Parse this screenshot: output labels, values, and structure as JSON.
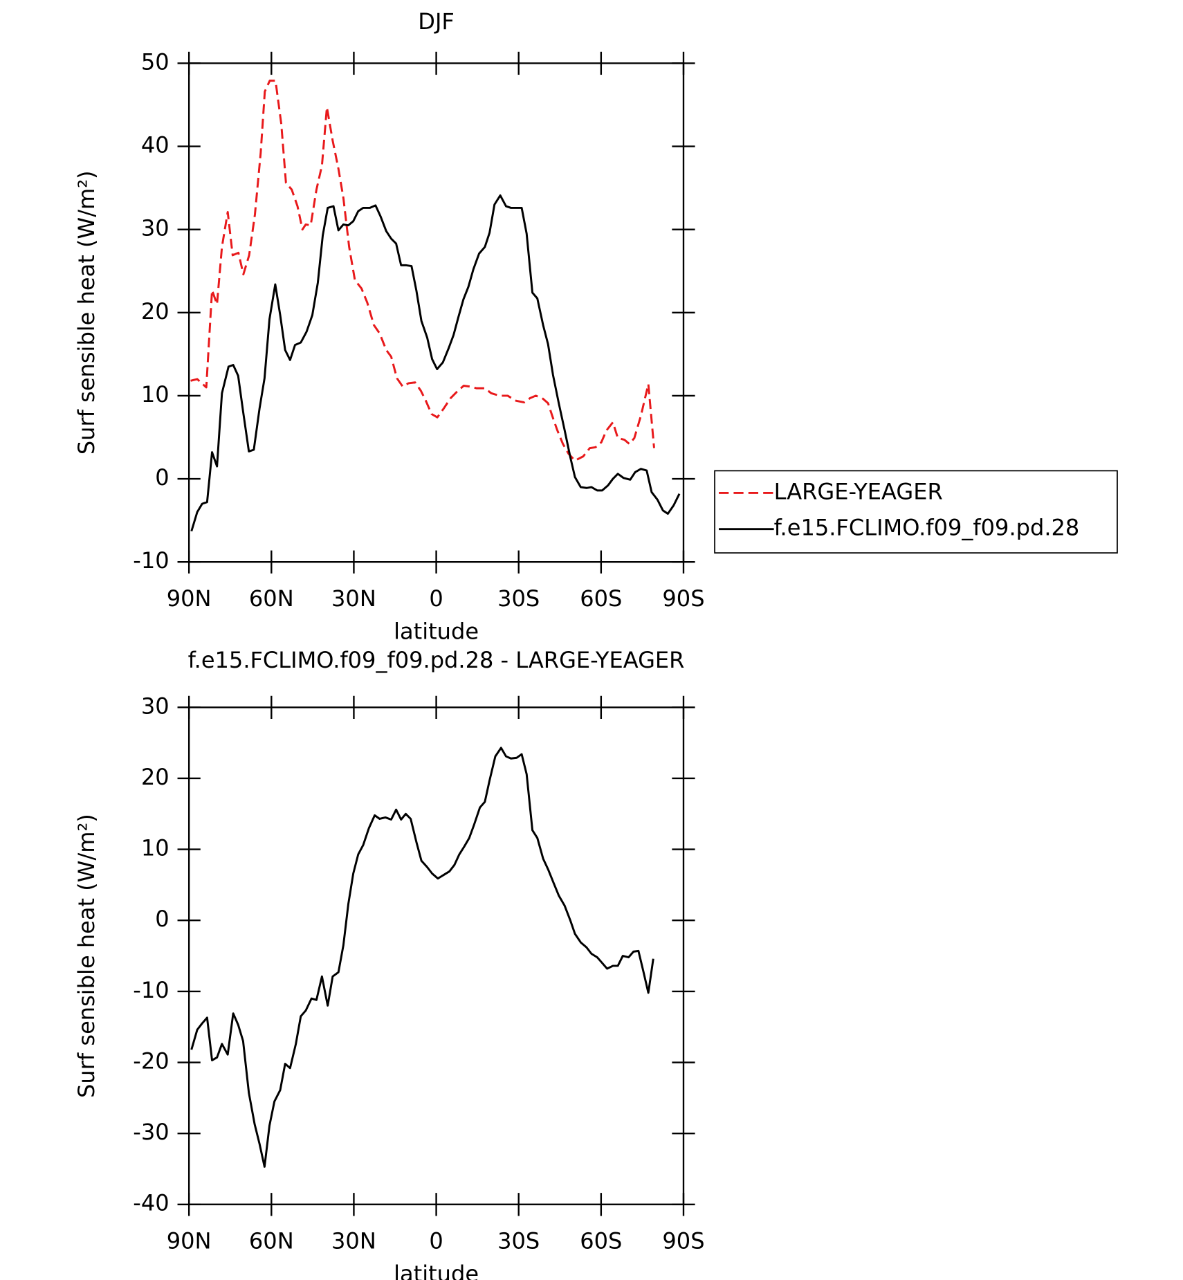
{
  "chart_data": [
    {
      "type": "line",
      "title": "DJF",
      "xlabel": "latitude",
      "ylabel": "Surf sensible heat (W/m²)",
      "xlim": [
        90,
        -90
      ],
      "xticks": [
        {
          "value": 90,
          "label": "90N"
        },
        {
          "value": 60,
          "label": "60N"
        },
        {
          "value": 30,
          "label": "30N"
        },
        0,
        {
          "value": -30,
          "label": "30S"
        },
        {
          "value": -60,
          "label": "60S"
        },
        {
          "value": -90,
          "label": "90S"
        }
      ],
      "ylim": [
        -10,
        50
      ],
      "yticks": [
        -10,
        0,
        10,
        20,
        30,
        40,
        50
      ],
      "legend": "right",
      "series": [
        {
          "name": "LARGE-YEAGER",
          "color": "#e8191b",
          "dash": "dashed",
          "x": [
            89.4,
            87.0,
            83.7,
            81.6,
            79.8,
            78.0,
            75.9,
            74.1,
            72.0,
            70.2,
            68.1,
            66.0,
            63.9,
            62.4,
            60.6,
            58.5,
            56.4,
            54.7,
            52.6,
            50.5,
            48.7,
            47.5,
            45.7,
            43.6,
            41.6,
            39.8,
            37.7,
            35.6,
            33.8,
            31.7,
            29.6,
            27.2,
            25.1,
            22.7,
            20.6,
            18.2,
            16.4,
            14.3,
            12.2,
            10.1,
            7.7,
            5.6,
            3.8,
            1.7,
            -0.4,
            -2.8,
            -5.2,
            -7.6,
            -10.0,
            -12.3,
            -14.7,
            -17.7,
            -20.0,
            -23.0,
            -26.0,
            -29.0,
            -32.0,
            -34.1,
            -36.2,
            -38.6,
            -40.7,
            -42.2,
            -44.0,
            -46.1,
            -48.2,
            -50.5,
            -53.5,
            -55.9,
            -58.0,
            -60.1,
            -61.9,
            -64.3,
            -66.1,
            -68.5,
            -70.3,
            -72.1,
            -74.5,
            -77.2,
            -79.3
          ],
          "values": [
            11.8,
            12,
            11,
            22.7,
            21,
            27.9,
            32.1,
            26.9,
            27.2,
            24.6,
            26.9,
            31.8,
            39.2,
            46.6,
            47.9,
            47.9,
            42.7,
            35.6,
            34.8,
            32.8,
            30,
            30.6,
            30.5,
            34.8,
            37.7,
            44.7,
            40.7,
            37.3,
            33.8,
            27.9,
            23.9,
            22.9,
            21.2,
            18.5,
            17.5,
            15.5,
            14.7,
            12.1,
            11.1,
            11.5,
            11.6,
            10.6,
            9.4,
            7.8,
            7.4,
            8.5,
            9.7,
            10.5,
            11.2,
            11.1,
            10.9,
            10.9,
            10.3,
            10,
            10,
            9.4,
            9.2,
            9.7,
            10,
            9.7,
            9.1,
            7.6,
            5.9,
            4.2,
            3,
            2.2,
            2.7,
            3.7,
            3.8,
            4.4,
            5.8,
            6.8,
            4.9,
            4.7,
            4.2,
            4.9,
            7.6,
            11.4,
            3.7
          ]
        },
        {
          "name": "f.e15.FCLIMO.f09_f09.pd.28",
          "color": "#000000",
          "dash": "solid",
          "x": [
            89.1,
            87.0,
            85.2,
            83.4,
            81.6,
            79.8,
            78.0,
            75.6,
            73.9,
            72.1,
            70.3,
            68.2,
            66.4,
            64.3,
            62.5,
            60.7,
            58.6,
            56.8,
            55.0,
            53.2,
            51.4,
            49.3,
            47.2,
            45.1,
            43.1,
            41.3,
            39.5,
            37.4,
            35.6,
            33.8,
            32.0,
            30.2,
            28.4,
            26.6,
            24.2,
            22.1,
            20.3,
            18.2,
            16.4,
            14.6,
            12.8,
            11.1,
            9.0,
            7.2,
            5.4,
            3.3,
            1.5,
            -0.3,
            -2.4,
            -4.5,
            -6.3,
            -8.1,
            -9.9,
            -11.7,
            -13.5,
            -15.6,
            -17.7,
            -19.4,
            -21.2,
            -23.3,
            -25.4,
            -27.2,
            -29.0,
            -31.1,
            -32.9,
            -35.0,
            -36.8,
            -38.9,
            -40.7,
            -42.5,
            -44.6,
            -46.7,
            -48.8,
            -50.5,
            -52.6,
            -54.7,
            -56.5,
            -58.6,
            -60.4,
            -62.5,
            -64.3,
            -66.1,
            -68.2,
            -70.6,
            -72.4,
            -74.5,
            -76.6,
            -78.4,
            -80.5,
            -82.5,
            -84.3,
            -86.4,
            -88.5
          ],
          "values": [
            -6.3,
            -4,
            -3,
            -2.8,
            3.2,
            1.5,
            10.3,
            13.5,
            13.7,
            12.4,
            8.1,
            3.3,
            3.5,
            8.5,
            12.1,
            19.2,
            23.4,
            19.7,
            15.5,
            14.3,
            16.1,
            16.4,
            17.7,
            19.7,
            23.6,
            29.3,
            32.6,
            32.8,
            29.9,
            30.6,
            30.5,
            31,
            32.2,
            32.6,
            32.6,
            32.9,
            31.6,
            29.8,
            28.9,
            28.3,
            25.7,
            25.7,
            25.6,
            22.6,
            19,
            17,
            14.4,
            13.2,
            14,
            15.7,
            17.3,
            19.5,
            21.6,
            23.1,
            25.2,
            27.1,
            27.9,
            29.6,
            33,
            34.1,
            32.8,
            32.6,
            32.6,
            32.6,
            29.5,
            22.4,
            21.7,
            18.5,
            16.2,
            12.5,
            9.1,
            5.9,
            2.6,
            0.2,
            -1,
            -1.1,
            -1,
            -1.4,
            -1.4,
            -0.8,
            0,
            0.6,
            0.1,
            -0.1,
            0.8,
            1.2,
            1,
            -1.6,
            -2.5,
            -3.8,
            -4.2,
            -3.2,
            -1.8
          ]
        }
      ]
    },
    {
      "type": "line",
      "title": "f.e15.FCLIMO.f09_f09.pd.28 - LARGE-YEAGER",
      "xlabel": "latitude",
      "ylabel": "Surf sensible heat (W/m²)",
      "xlim": [
        90,
        -90
      ],
      "xticks": [
        {
          "value": 90,
          "label": "90N"
        },
        {
          "value": 60,
          "label": "60N"
        },
        {
          "value": 30,
          "label": "30N"
        },
        0,
        {
          "value": -30,
          "label": "30S"
        },
        {
          "value": -60,
          "label": "60S"
        },
        {
          "value": -90,
          "label": "90S"
        }
      ],
      "ylim": [
        -40,
        30
      ],
      "yticks": [
        -40,
        -30,
        -20,
        -10,
        0,
        10,
        20,
        30
      ],
      "series": [
        {
          "color": "#000000",
          "dash": "solid",
          "x": [
            89.1,
            87.0,
            85.2,
            83.4,
            81.6,
            79.8,
            78.0,
            75.9,
            73.9,
            72.1,
            70.3,
            68.2,
            66.1,
            64.3,
            62.5,
            60.7,
            58.9,
            56.8,
            55.0,
            53.2,
            51.1,
            49.3,
            47.5,
            45.4,
            43.6,
            41.6,
            39.5,
            37.7,
            35.6,
            33.8,
            32.0,
            30.2,
            28.4,
            26.6,
            24.5,
            22.4,
            20.6,
            18.5,
            16.4,
            14.6,
            12.8,
            11.1,
            9.3,
            7.2,
            5.4,
            3.3,
            1.5,
            -0.6,
            -2.7,
            -4.8,
            -6.6,
            -8.4,
            -10.2,
            -12.0,
            -13.8,
            -15.9,
            -17.7,
            -19.4,
            -21.5,
            -23.6,
            -25.4,
            -27.2,
            -29.3,
            -31.1,
            -32.9,
            -35.0,
            -36.8,
            -38.9,
            -40.7,
            -42.8,
            -44.6,
            -46.7,
            -48.8,
            -50.5,
            -52.6,
            -54.7,
            -56.5,
            -58.6,
            -60.4,
            -62.2,
            -64.3,
            -66.1,
            -67.9,
            -70.0,
            -71.8,
            -73.6,
            -75.4,
            -77.2,
            -79.0
          ],
          "values": [
            -18.2,
            -15.4,
            -14.5,
            -13.7,
            -19.7,
            -19.3,
            -17.4,
            -18.9,
            -13.1,
            -14.7,
            -17,
            -24.3,
            -28.7,
            -31.5,
            -34.7,
            -28.9,
            -25.5,
            -23.9,
            -20.2,
            -20.8,
            -17.4,
            -13.5,
            -12.7,
            -11,
            -11.2,
            -7.9,
            -12,
            -7.9,
            -7.3,
            -3.5,
            2.3,
            6.6,
            9.3,
            10.6,
            13,
            14.8,
            14.3,
            14.5,
            14.2,
            15.6,
            14.2,
            15,
            14.3,
            11,
            8.4,
            7.5,
            6.6,
            5.9,
            6.4,
            6.9,
            7.8,
            9.3,
            10.4,
            11.6,
            13.5,
            15.9,
            16.7,
            19.7,
            23.1,
            24.3,
            23.1,
            22.8,
            22.9,
            23.4,
            20.6,
            12.7,
            11.6,
            8.7,
            7.2,
            5.2,
            3.5,
            2.1,
            0,
            -1.9,
            -3.1,
            -3.8,
            -4.7,
            -5.2,
            -6,
            -6.8,
            -6.4,
            -6.4,
            -5,
            -5.2,
            -4.4,
            -4.3,
            -7.2,
            -10.2,
            -5.4
          ]
        }
      ]
    }
  ]
}
